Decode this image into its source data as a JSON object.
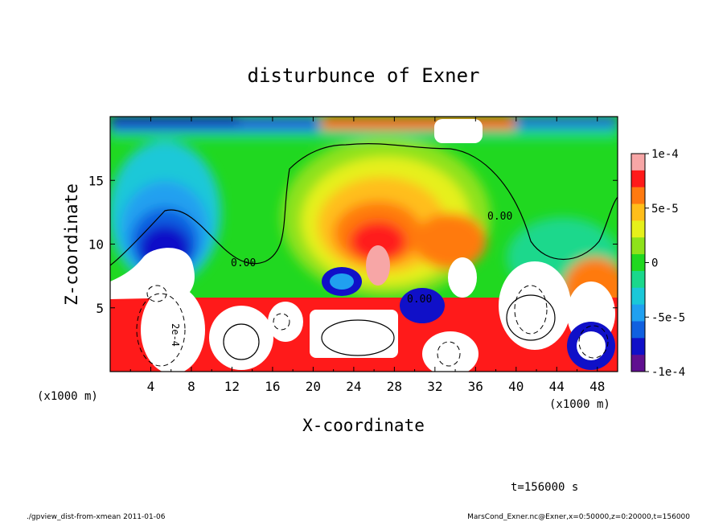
{
  "chart_data": {
    "type": "heatmap",
    "title": "disturbunce of Exner",
    "xlabel": "X-coordinate",
    "ylabel": "Z-coordinate",
    "x_unit_left": "(x1000 m)",
    "x_unit_right": "(x1000 m)",
    "xlim": [
      0,
      50
    ],
    "ylim": [
      0,
      20
    ],
    "x_ticks": [
      4,
      8,
      12,
      16,
      20,
      24,
      28,
      32,
      36,
      40,
      44,
      48
    ],
    "x_tick_labels": [
      "4",
      "8",
      "12",
      "16",
      "20",
      "24",
      "28",
      "32",
      "36",
      "40",
      "44",
      "48"
    ],
    "y_ticks": [
      5,
      10,
      15
    ],
    "y_tick_labels": [
      "5",
      "10",
      "15"
    ],
    "colorbar": {
      "range": [
        -0.0001,
        0.0001
      ],
      "ticks": [
        0.0001,
        5e-05,
        0,
        -5e-05,
        -0.0001
      ],
      "tick_labels": [
        "1e-4",
        "5e-5",
        "0",
        "-5e-5",
        "-1e-4"
      ],
      "colors": [
        "#f7a6a6",
        "#ff1a1a",
        "#ff7a10",
        "#ffbe1a",
        "#e6f01a",
        "#8ee21a",
        "#20d820",
        "#1ad88c",
        "#1ac8d8",
        "#20a0f0",
        "#1060e0",
        "#1010c8",
        "#601090"
      ]
    },
    "contour_labels": [
      "0.00",
      "0.00",
      "0.00",
      "2e-4"
    ],
    "time_label": "t=156000 s"
  },
  "footer": {
    "left": "./gpview_dist-from-xmean  2011-01-06",
    "right": "MarsCond_Exner.nc@Exner,x=0:50000,z=0:20000,t=156000"
  }
}
